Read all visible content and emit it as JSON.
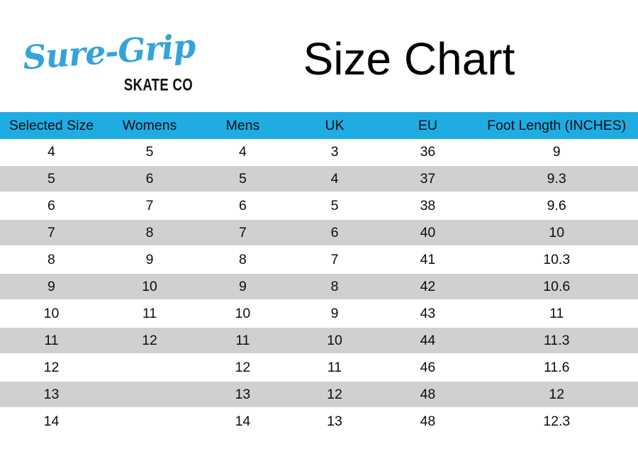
{
  "brand": {
    "script": "Sure-Grip",
    "sub": "SKATE CO"
  },
  "title": "Size Chart",
  "colors": {
    "header_bg": "#1FACE3",
    "logo_blue": "#35A3DB",
    "row_alt_bg": "#D0D0D0",
    "text": "#111111"
  },
  "chart_data": {
    "type": "table",
    "title": "Size Chart",
    "columns": [
      "Selected Size",
      "Womens",
      "Mens",
      "UK",
      "EU",
      "Foot Length (INCHES)"
    ],
    "rows": [
      [
        "4",
        "5",
        "4",
        "3",
        "36",
        "9"
      ],
      [
        "5",
        "6",
        "5",
        "4",
        "37",
        "9.3"
      ],
      [
        "6",
        "7",
        "6",
        "5",
        "38",
        "9.6"
      ],
      [
        "7",
        "8",
        "7",
        "6",
        "40",
        "10"
      ],
      [
        "8",
        "9",
        "8",
        "7",
        "41",
        "10.3"
      ],
      [
        "9",
        "10",
        "9",
        "8",
        "42",
        "10.6"
      ],
      [
        "10",
        "11",
        "10",
        "9",
        "43",
        "11"
      ],
      [
        "11",
        "12",
        "11",
        "10",
        "44",
        "11.3"
      ],
      [
        "12",
        "",
        "12",
        "11",
        "46",
        "11.6"
      ],
      [
        "13",
        "",
        "13",
        "12",
        "48",
        "12"
      ],
      [
        "14",
        "",
        "14",
        "13",
        "48",
        "12.3"
      ]
    ]
  }
}
